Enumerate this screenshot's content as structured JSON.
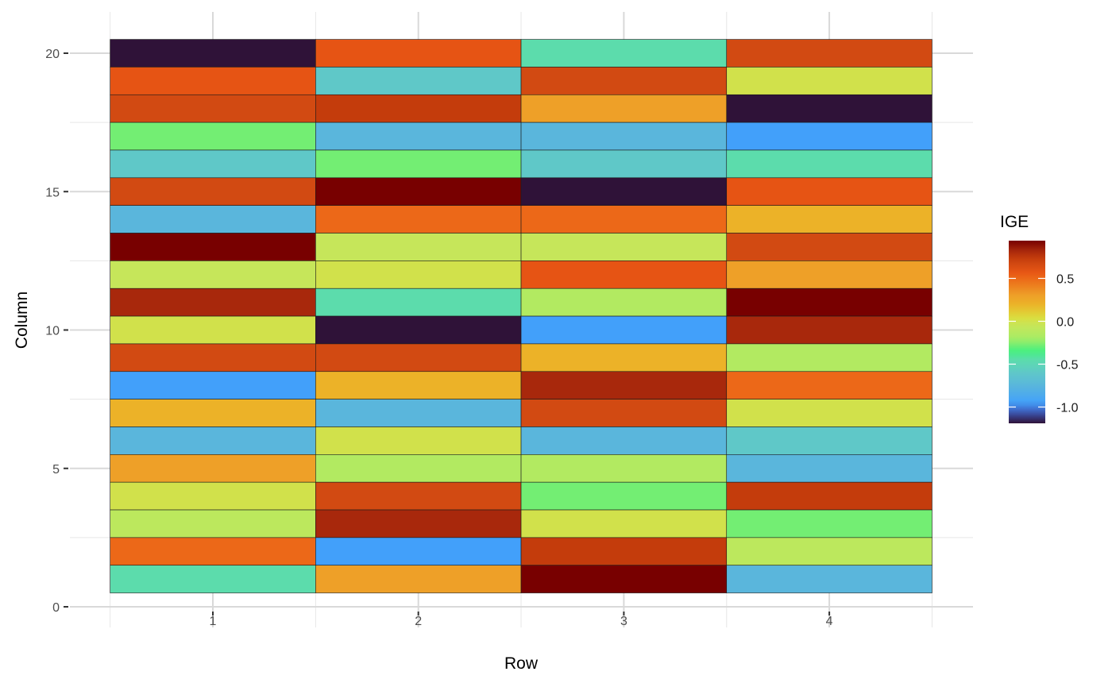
{
  "chart_data": {
    "type": "heatmap",
    "xlabel": "Row",
    "ylabel": "Column",
    "x_ticks": [
      1,
      2,
      3,
      4
    ],
    "y_ticks": [
      0,
      5,
      10,
      15,
      20
    ],
    "xlim": [
      0.3,
      4.7
    ],
    "ylim": [
      -0.75,
      21.5
    ],
    "grid": true,
    "legend": {
      "title": "IGE",
      "position": "right",
      "ticks": [
        0.5,
        0.0,
        -0.5,
        -1.0
      ],
      "tick_labels": [
        "0.5",
        "0.0",
        "-0.5",
        "-1.0"
      ],
      "range": [
        -1.19,
        0.94
      ]
    },
    "color_scale": [
      [
        -1.19,
        "#2f1238"
      ],
      [
        -1.05,
        "#3e5fc0"
      ],
      [
        -0.95,
        "#42a0fa"
      ],
      [
        -0.75,
        "#5ab6dc"
      ],
      [
        -0.6,
        "#5fc8c8"
      ],
      [
        -0.45,
        "#5cdcac"
      ],
      [
        -0.35,
        "#45f080"
      ],
      [
        -0.2,
        "#a8ec64"
      ],
      [
        -0.05,
        "#c6e65a"
      ],
      [
        0.05,
        "#dcdc3c"
      ],
      [
        0.2,
        "#ecb228"
      ],
      [
        0.3,
        "#eea028"
      ],
      [
        0.5,
        "#ec6818"
      ],
      [
        0.58,
        "#e65414"
      ],
      [
        0.66,
        "#d24a12"
      ],
      [
        0.74,
        "#c43c0c"
      ],
      [
        0.82,
        "#a8280c"
      ],
      [
        0.94,
        "#780000"
      ]
    ],
    "columns_y": [
      20,
      19,
      18,
      17,
      16,
      15,
      14,
      13,
      12,
      11,
      10,
      9,
      8,
      7,
      6,
      5,
      4,
      3,
      2,
      1
    ],
    "rows_x": [
      1,
      2,
      3,
      4
    ],
    "values": [
      [
        -1.19,
        0.58,
        -0.45,
        0.66
      ],
      [
        0.58,
        -0.6,
        0.66,
        0.0
      ],
      [
        0.66,
        0.74,
        0.3,
        -1.19
      ],
      [
        -0.28,
        -0.75,
        -0.75,
        -0.95
      ],
      [
        -0.6,
        -0.28,
        -0.6,
        -0.45
      ],
      [
        0.66,
        0.94,
        -1.19,
        0.58
      ],
      [
        -0.75,
        0.5,
        0.5,
        0.2
      ],
      [
        0.94,
        -0.05,
        -0.05,
        0.66
      ],
      [
        -0.05,
        0.0,
        0.58,
        0.3
      ],
      [
        0.82,
        -0.45,
        -0.15,
        0.94
      ],
      [
        0.0,
        -1.19,
        -0.95,
        0.82
      ],
      [
        0.66,
        0.66,
        0.2,
        -0.15
      ],
      [
        -0.95,
        0.2,
        0.82,
        0.5
      ],
      [
        0.2,
        -0.75,
        0.66,
        0.0
      ],
      [
        -0.75,
        0.0,
        -0.75,
        -0.6
      ],
      [
        0.3,
        -0.15,
        -0.15,
        -0.75
      ],
      [
        0.0,
        0.66,
        -0.28,
        0.74
      ],
      [
        -0.1,
        0.82,
        0.0,
        -0.28
      ],
      [
        0.5,
        -0.95,
        0.74,
        -0.1
      ],
      [
        -0.45,
        0.3,
        0.94,
        -0.75
      ]
    ]
  }
}
